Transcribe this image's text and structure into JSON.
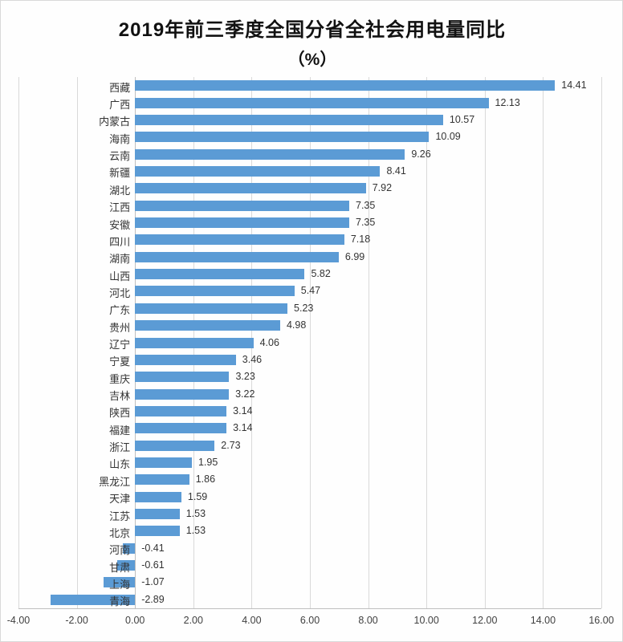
{
  "page": {
    "title_line1": "2019年前三季度全国分省全社会用电量同比",
    "title_line2": "（%）"
  },
  "chart_data": {
    "type": "bar",
    "orientation": "horizontal",
    "title": "2019年前三季度全国分省全社会用电量同比（%）",
    "categories": [
      "西藏",
      "广西",
      "内蒙古",
      "海南",
      "云南",
      "新疆",
      "湖北",
      "江西",
      "安徽",
      "四川",
      "湖南",
      "山西",
      "河北",
      "广东",
      "贵州",
      "辽宁",
      "宁夏",
      "重庆",
      "吉林",
      "陕西",
      "福建",
      "浙江",
      "山东",
      "黑龙江",
      "天津",
      "江苏",
      "北京",
      "河南",
      "甘肃",
      "上海",
      "青海"
    ],
    "values": [
      14.41,
      12.13,
      10.57,
      10.09,
      9.26,
      8.41,
      7.92,
      7.35,
      7.35,
      7.18,
      6.99,
      5.82,
      5.47,
      5.23,
      4.98,
      4.06,
      3.46,
      3.23,
      3.22,
      3.14,
      3.14,
      2.73,
      1.95,
      1.86,
      1.59,
      1.53,
      1.53,
      -0.41,
      -0.61,
      -1.07,
      -2.89
    ],
    "xlim": [
      -4,
      16
    ],
    "x_tick_step": 2,
    "x_tick_labels": [
      "-4.00",
      "-2.00",
      "0.00",
      "2.00",
      "4.00",
      "6.00",
      "8.00",
      "10.00",
      "12.00",
      "14.00",
      "16.00"
    ],
    "xlabel": "",
    "ylabel": "",
    "bar_color": "#5b9bd5",
    "grid": true,
    "data_labels": true,
    "legend": "none"
  }
}
